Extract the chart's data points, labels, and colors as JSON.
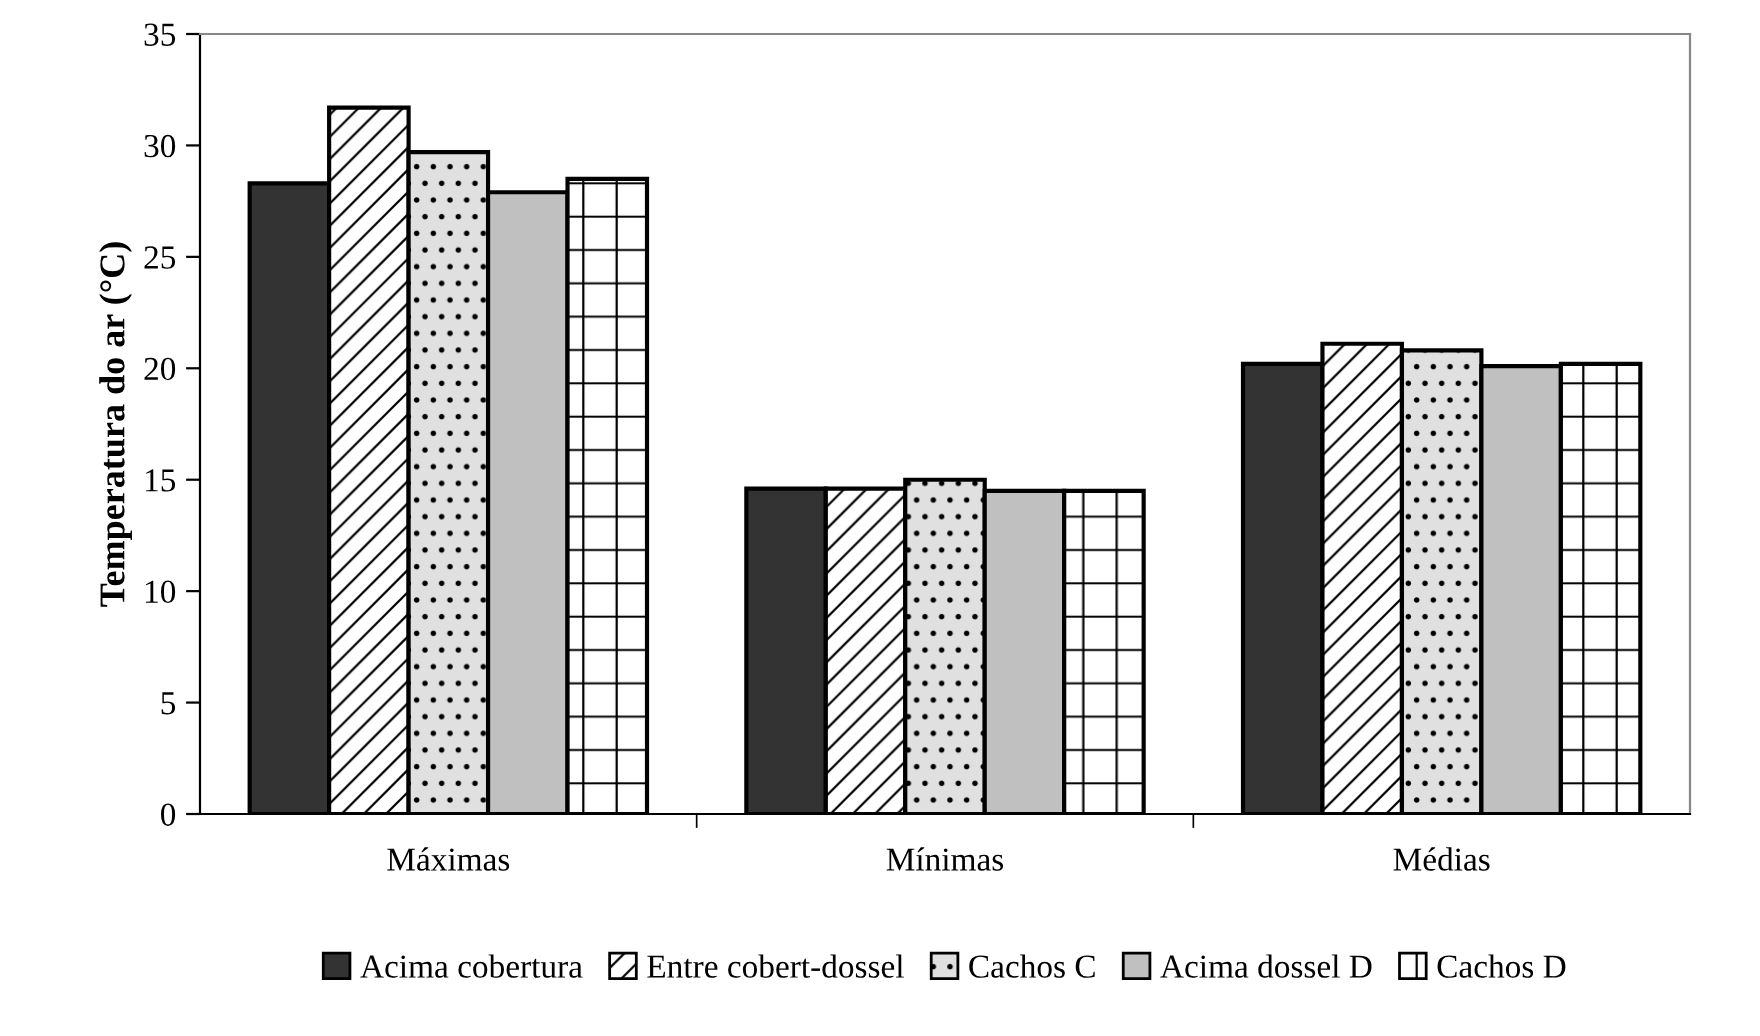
{
  "chart_data": {
    "type": "bar",
    "ylabel": "Temperatura do ar (°C)",
    "categories": [
      "Máximas",
      "Mínimas",
      "Médias"
    ],
    "series": [
      {
        "name": "Acima cobertura",
        "color": "#333333",
        "values": [
          28.3,
          14.6,
          20.2
        ]
      },
      {
        "name": "Entre cobert-dossel",
        "color": "#ffffff",
        "values": [
          31.7,
          14.6,
          21.1
        ]
      },
      {
        "name": "Cachos C",
        "color": "#e0e0e0",
        "values": [
          29.7,
          15.0,
          20.8
        ]
      },
      {
        "name": "Acima dossel D",
        "color": "#c0c0c0",
        "values": [
          27.9,
          14.5,
          20.1
        ]
      },
      {
        "name": "Cachos D",
        "color": "#ffffff",
        "values": [
          28.5,
          14.5,
          20.2
        ]
      }
    ],
    "ylim": [
      0,
      35
    ],
    "yticks": [
      0,
      5,
      10,
      15,
      20,
      25,
      30,
      35
    ],
    "grid": false,
    "legend": "bottom"
  }
}
